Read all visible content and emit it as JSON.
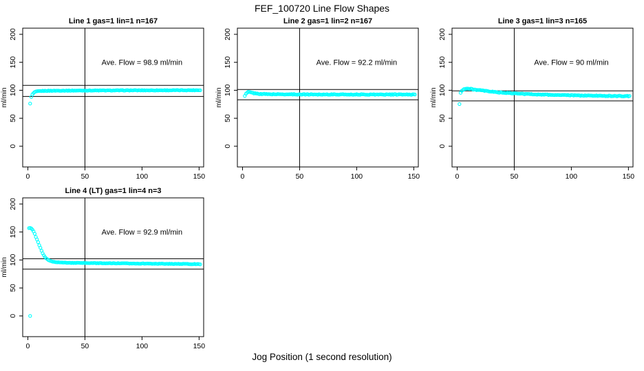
{
  "figure": {
    "title": "FEF_100720  Line Flow Shapes",
    "xlabel": "Jog Position (1 second resolution)",
    "background_color": "#ffffff",
    "axis_color": "#000000",
    "point_color": "#00ffff"
  },
  "chart_data": [
    {
      "type": "scatter",
      "title": "Line 1 gas=1 lin=1 n=167",
      "annotation": "Ave. Flow =  98.9  ml/min",
      "ave_flow": 98.9,
      "ylabel": "ml/min",
      "x_ticks": [
        0,
        50,
        100,
        150
      ],
      "y_ticks": [
        0,
        50,
        100,
        150,
        200
      ],
      "xlim": [
        -4.5,
        154
      ],
      "ylim": [
        -37,
        211
      ],
      "grid": false,
      "vline_x": 50,
      "hlines": [
        108.8,
        89.0
      ],
      "marker": "open-circle",
      "color": "#00ffff",
      "x_start": 2,
      "x_end": 151,
      "x_step": 1,
      "anchors": [
        [
          2,
          76
        ],
        [
          3,
          88
        ],
        [
          4,
          92.5
        ],
        [
          5,
          95
        ],
        [
          6,
          96.5
        ],
        [
          7,
          97.5
        ],
        [
          8,
          98
        ],
        [
          10,
          98.6
        ],
        [
          15,
          99
        ],
        [
          20,
          99.2
        ],
        [
          30,
          99.4
        ],
        [
          50,
          99.6
        ],
        [
          70,
          99.7
        ],
        [
          90,
          99.9
        ],
        [
          120,
          100
        ],
        [
          151,
          100.2
        ]
      ],
      "extra_points": [],
      "jitter": 0.9
    },
    {
      "type": "scatter",
      "title": "Line 2 gas=1 lin=2 n=167",
      "annotation": "Ave. Flow =  92.2  ml/min",
      "ave_flow": 92.2,
      "ylabel": "ml/min",
      "x_ticks": [
        0,
        50,
        100,
        150
      ],
      "y_ticks": [
        0,
        50,
        100,
        150,
        200
      ],
      "xlim": [
        -4.5,
        154
      ],
      "ylim": [
        -37,
        211
      ],
      "grid": false,
      "vline_x": 50,
      "hlines": [
        101.4,
        83.0
      ],
      "marker": "open-circle",
      "color": "#00ffff",
      "x_start": 2,
      "x_end": 151,
      "x_step": 1,
      "anchors": [
        [
          2,
          89.5
        ],
        [
          3,
          93.5
        ],
        [
          4,
          95.5
        ],
        [
          5,
          96.8
        ],
        [
          6,
          96.8
        ],
        [
          7,
          96.3
        ],
        [
          8,
          95.8
        ],
        [
          10,
          94.8
        ],
        [
          12,
          94.2
        ],
        [
          15,
          93.6
        ],
        [
          20,
          93.2
        ],
        [
          25,
          93
        ],
        [
          30,
          92.9
        ],
        [
          40,
          92.8
        ],
        [
          50,
          92.7
        ],
        [
          70,
          92.6
        ],
        [
          100,
          92.5
        ],
        [
          151,
          92.4
        ]
      ],
      "extra_points": [],
      "jitter": 1.3
    },
    {
      "type": "scatter",
      "title": "Line 3 gas=1 lin=3 n=165",
      "annotation": "Ave. Flow =  90  ml/min",
      "ave_flow": 90,
      "ylabel": "ml/min",
      "x_ticks": [
        0,
        50,
        100,
        150
      ],
      "y_ticks": [
        0,
        50,
        100,
        150,
        200
      ],
      "xlim": [
        -4.5,
        154
      ],
      "ylim": [
        -37,
        211
      ],
      "grid": false,
      "vline_x": 50,
      "hlines": [
        99.0,
        81.0
      ],
      "marker": "open-circle",
      "color": "#00ffff",
      "x_start": 2,
      "x_end": 151,
      "x_step": 1,
      "anchors": [
        [
          2,
          75
        ],
        [
          3,
          95.5
        ],
        [
          4,
          99.5
        ],
        [
          5,
          101
        ],
        [
          6,
          102
        ],
        [
          8,
          103
        ],
        [
          10,
          102.8
        ],
        [
          12,
          102.3
        ],
        [
          15,
          101.3
        ],
        [
          18,
          100.5
        ],
        [
          20,
          100
        ],
        [
          25,
          98.7
        ],
        [
          30,
          97.5
        ],
        [
          35,
          96.5
        ],
        [
          40,
          95.7
        ],
        [
          45,
          95
        ],
        [
          50,
          94.4
        ],
        [
          55,
          93.9
        ],
        [
          60,
          93.4
        ],
        [
          70,
          92.7
        ],
        [
          80,
          92
        ],
        [
          90,
          91.5
        ],
        [
          100,
          91
        ],
        [
          110,
          90.6
        ],
        [
          120,
          90.3
        ],
        [
          130,
          90
        ],
        [
          140,
          89.8
        ],
        [
          151,
          89.6
        ]
      ],
      "extra_points": [],
      "jitter": 1.3
    },
    {
      "type": "scatter",
      "title": "Line 4 (LT) gas=1 lin=4 n=3",
      "annotation": "Ave. Flow =  92.9  ml/min",
      "ave_flow": 92.9,
      "ylabel": "ml/min",
      "x_ticks": [
        0,
        50,
        100,
        150
      ],
      "y_ticks": [
        0,
        50,
        100,
        150,
        200
      ],
      "xlim": [
        -4.5,
        154
      ],
      "ylim": [
        -37,
        211
      ],
      "grid": false,
      "vline_x": 50,
      "hlines": [
        102.2,
        83.6
      ],
      "marker": "open-circle",
      "color": "#00ffff",
      "x_start": 1,
      "x_end": 151,
      "x_step": 1,
      "anchors": [
        [
          1,
          157
        ],
        [
          2,
          157.5
        ],
        [
          3,
          156.5
        ],
        [
          4,
          154.5
        ],
        [
          5,
          151
        ],
        [
          6,
          146.5
        ],
        [
          7,
          141.5
        ],
        [
          8,
          136.5
        ],
        [
          9,
          131.5
        ],
        [
          10,
          126.5
        ],
        [
          11,
          121.5
        ],
        [
          12,
          116.5
        ],
        [
          13,
          112
        ],
        [
          14,
          108
        ],
        [
          15,
          105
        ],
        [
          16,
          102.8
        ],
        [
          17,
          101.2
        ],
        [
          18,
          100
        ],
        [
          19,
          99
        ],
        [
          20,
          98.2
        ],
        [
          22,
          97.2
        ],
        [
          24,
          96.5
        ],
        [
          26,
          96
        ],
        [
          28,
          95.7
        ],
        [
          30,
          95.4
        ],
        [
          35,
          95
        ],
        [
          40,
          94.8
        ],
        [
          50,
          94.6
        ],
        [
          60,
          94.4
        ],
        [
          70,
          94.2
        ],
        [
          80,
          94
        ],
        [
          90,
          93.8
        ],
        [
          100,
          93.6
        ],
        [
          110,
          93.4
        ],
        [
          120,
          93.2
        ],
        [
          130,
          93
        ],
        [
          140,
          92.8
        ],
        [
          151,
          92.6
        ]
      ],
      "extra_points": [
        [
          2,
          0
        ]
      ],
      "jitter": 0.8
    }
  ]
}
